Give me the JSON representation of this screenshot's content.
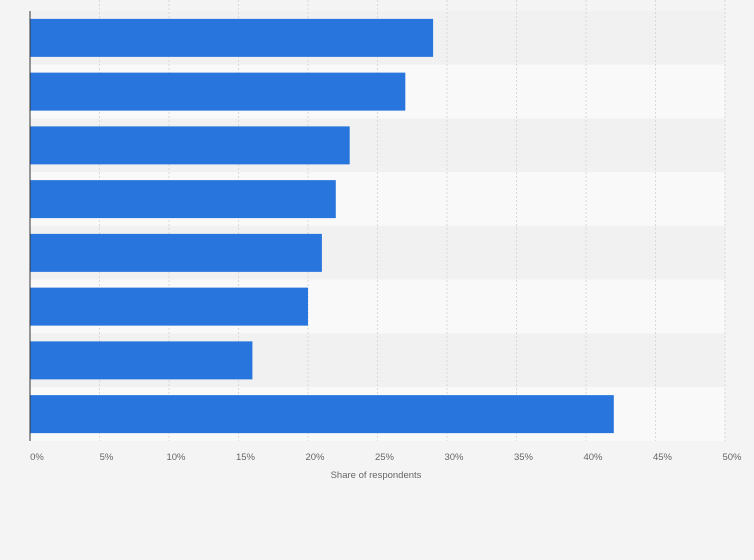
{
  "chart_data": {
    "type": "bar",
    "orientation": "horizontal",
    "categories": [
      "",
      "",
      "",
      "",
      "",
      "",
      "",
      ""
    ],
    "values": [
      29,
      27,
      23,
      22,
      21,
      20,
      16,
      42
    ],
    "xlabel": "Share of respondents",
    "ylabel": "",
    "xlim": [
      0,
      50
    ],
    "x_ticks": [
      0,
      5,
      10,
      15,
      20,
      25,
      30,
      35,
      40,
      45,
      50
    ],
    "tick_suffix": "%",
    "grid": true,
    "legend": "none",
    "bar_color": "#2876dd"
  },
  "colors": {
    "background": "#f4f4f4",
    "band_light": "#f9f9f9",
    "band_dark": "#f1f1f1",
    "grid": "#d9d9d9",
    "axis": "#333333",
    "text": "#666666"
  }
}
